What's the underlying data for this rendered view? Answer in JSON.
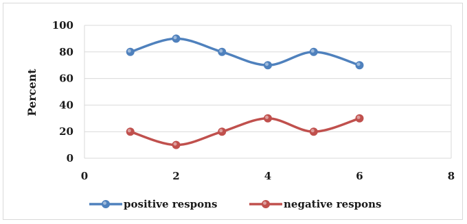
{
  "chart_data": {
    "type": "line",
    "smooth": true,
    "title": "",
    "xlabel": "",
    "ylabel": "Percent",
    "xlim": [
      0,
      8
    ],
    "ylim": [
      0,
      100
    ],
    "x_ticks": [
      0,
      2,
      4,
      6,
      8
    ],
    "y_ticks": [
      0,
      20,
      40,
      60,
      80,
      100
    ],
    "grid": "horizontal",
    "legend_position": "bottom",
    "x": [
      1,
      2,
      3,
      4,
      5,
      6
    ],
    "series": [
      {
        "name": "positive respons",
        "values": [
          80,
          90,
          80,
          70,
          80,
          70
        ],
        "color": "#4f81bd"
      },
      {
        "name": "negative respons",
        "values": [
          20,
          10,
          20,
          30,
          20,
          30
        ],
        "color": "#c0504d"
      }
    ]
  }
}
